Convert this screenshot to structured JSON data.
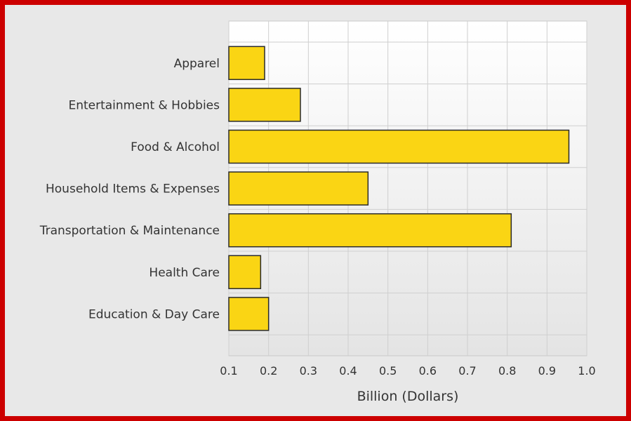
{
  "chart_data": {
    "type": "bar",
    "orientation": "horizontal",
    "categories": [
      "Apparel",
      "Entertainment & Hobbies",
      "Food & Alcohol",
      "Household Items & Expenses",
      "Transportation & Maintenance",
      "Health Care",
      "Education & Day Care"
    ],
    "values": [
      0.19,
      0.28,
      0.955,
      0.45,
      0.81,
      0.18,
      0.2
    ],
    "xlabel": "Billion (Dollars)",
    "xlim": [
      0.1,
      1.0
    ],
    "xticks": [
      "0.1",
      "0.2",
      "0.3",
      "0.4",
      "0.5",
      "0.6",
      "0.7",
      "0.8",
      "0.9",
      "1.0"
    ],
    "grid": true,
    "bar_color": "#fad514",
    "frame_color": "#cc0000"
  }
}
